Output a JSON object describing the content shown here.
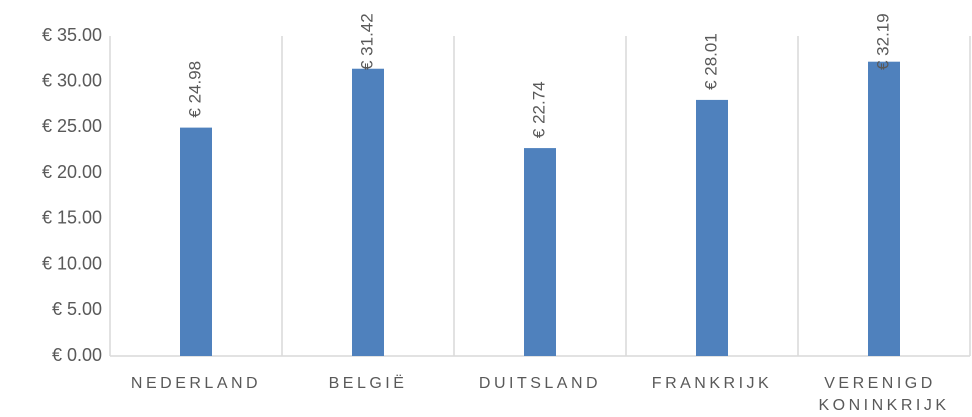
{
  "chart_data": {
    "type": "bar",
    "categories": [
      "NEDERLAND",
      "BELGIË",
      "DUITSLAND",
      "FRANKRIJK",
      "VERENIGD KONINKRIJK"
    ],
    "values": [
      24.98,
      31.42,
      22.74,
      28.01,
      32.19
    ],
    "value_labels": [
      "€ 24.98",
      "€ 31.42",
      "€ 22.74",
      "€ 28.01",
      "€ 32.19"
    ],
    "color": "#4f81bd",
    "ylim": [
      0,
      35
    ],
    "yticks": [
      {
        "value": 0,
        "label": "€ 0.00"
      },
      {
        "value": 5,
        "label": "€ 5.00"
      },
      {
        "value": 10,
        "label": "€ 10.00"
      },
      {
        "value": 15,
        "label": "€ 15.00"
      },
      {
        "value": 20,
        "label": "€ 20.00"
      },
      {
        "value": 25,
        "label": "€ 25.00"
      },
      {
        "value": 30,
        "label": "€ 30.00"
      },
      {
        "value": 35,
        "label": "€ 35.00"
      }
    ],
    "grid": false
  }
}
